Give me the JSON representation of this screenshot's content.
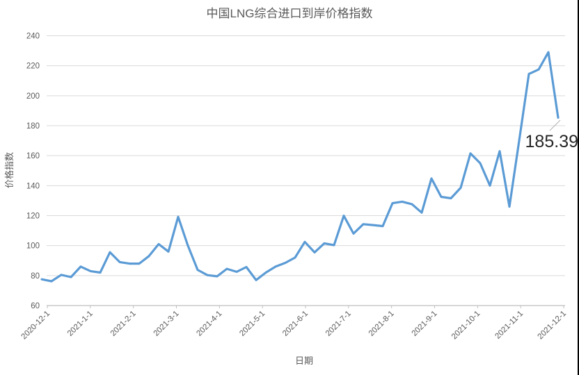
{
  "chart_data": {
    "type": "line",
    "title": "中国LNG综合进口到岸价格指数",
    "xlabel": "日期",
    "ylabel": "价格指数",
    "ylim": [
      60,
      240
    ],
    "ytick_step": 20,
    "ytick_labels": [
      "240",
      "220",
      "200",
      "180",
      "160",
      "140",
      "120",
      "100",
      "80",
      "60"
    ],
    "xtick_labels": [
      "2020-12-1",
      "2021-1-1",
      "2021-2-1",
      "2021-3-1",
      "2021-4-1",
      "2021-5-1",
      "2021-6-1",
      "2021-7-1",
      "2021-8-1",
      "2021-9-1",
      "2021-10-1",
      "2021-11-1",
      "2021-12-1"
    ],
    "grid": "horizontal",
    "legend": "none",
    "series": [
      {
        "name": "中国LNG综合进口到岸价格指数",
        "color": "#5b9bd5",
        "x": [
          "2020-12-1",
          "2020-12-8",
          "2020-12-15",
          "2020-12-22",
          "2020-12-29",
          "2021-1-5",
          "2021-1-12",
          "2021-1-19",
          "2021-1-26",
          "2021-2-2",
          "2021-2-9",
          "2021-2-16",
          "2021-2-23",
          "2021-3-2",
          "2021-3-9",
          "2021-3-16",
          "2021-3-23",
          "2021-3-30",
          "2021-4-6",
          "2021-4-13",
          "2021-4-20",
          "2021-4-27",
          "2021-5-4",
          "2021-5-11",
          "2021-5-18",
          "2021-5-25",
          "2021-6-1",
          "2021-6-8",
          "2021-6-15",
          "2021-6-22",
          "2021-6-29",
          "2021-7-6",
          "2021-7-13",
          "2021-7-20",
          "2021-7-27",
          "2021-8-3",
          "2021-8-10",
          "2021-8-17",
          "2021-8-24",
          "2021-8-31",
          "2021-9-7",
          "2021-9-14",
          "2021-9-21",
          "2021-9-28",
          "2021-10-5",
          "2021-10-12",
          "2021-10-19",
          "2021-10-26",
          "2021-11-2",
          "2021-11-9",
          "2021-11-16",
          "2021-11-23",
          "2021-11-30",
          "2021-12-7"
        ],
        "values": [
          77.5,
          76.2,
          80.5,
          79,
          86,
          83,
          82,
          95.6,
          89,
          88,
          88,
          93,
          101,
          96,
          119.2,
          100,
          83.8,
          80.3,
          79.5,
          84.5,
          82.5,
          85.7,
          77,
          82,
          86,
          88.5,
          92,
          102.5,
          95.5,
          101.5,
          100.3,
          119.9,
          108,
          114.3,
          113.7,
          113,
          128.3,
          129.3,
          127.6,
          122,
          144.8,
          132.5,
          131.6,
          138.6,
          161.5,
          155,
          140,
          163,
          126,
          170,
          214.5,
          217.5,
          229,
          185.39
        ]
      }
    ],
    "annotation": {
      "text": "185.39",
      "x": "2021-12-7",
      "value": 185.39
    }
  },
  "colors": {
    "line": "#5b9bd5",
    "gridline": "#d9d9d9",
    "axis_line": "#bfbfbf",
    "tick": "#bfbfbf",
    "text": "#595959",
    "annotation_text": "#262626",
    "leader_line": "#b0b0b0",
    "background": "#ffffff",
    "edge_line": "#000000"
  }
}
